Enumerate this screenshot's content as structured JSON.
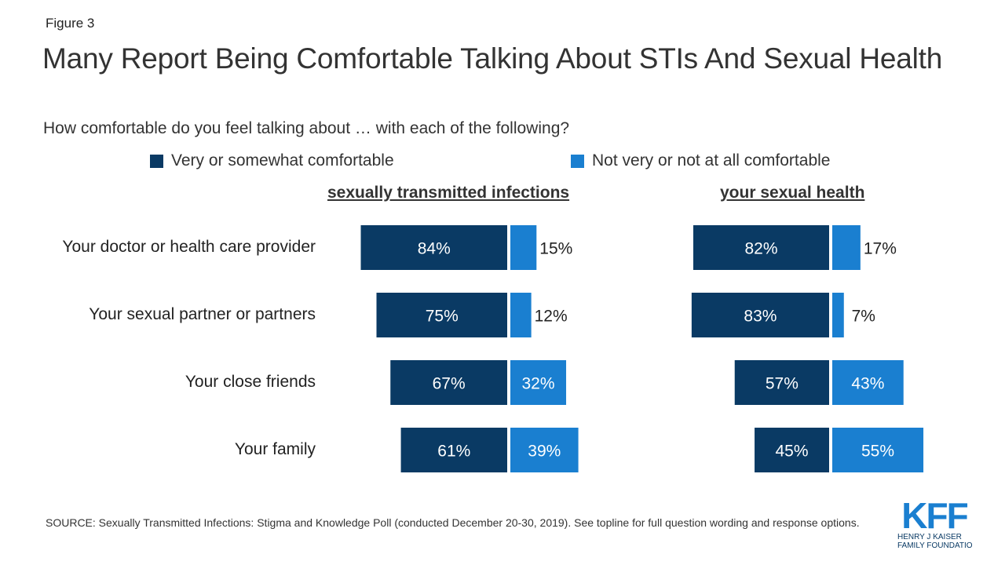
{
  "figure_label": "Figure 3",
  "title": "Many Report Being Comfortable Talking About STIs And Sexual Health",
  "subtitle": "How comfortable do you feel talking about … with each of the following?",
  "colors": {
    "comfortable": "#0a3a64",
    "not_comfortable": "#1a7fd0",
    "text": "#333333"
  },
  "chart_data": {
    "type": "bar",
    "orientation": "horizontal-diverging",
    "categories": [
      "Your doctor or health care provider",
      "Your sexual partner or partners",
      "Your close friends",
      "Your family"
    ],
    "legend": {
      "placement": "top",
      "entries": [
        "Very or somewhat comfortable",
        "Not very or not at all comfortable"
      ]
    },
    "panels": [
      {
        "title": "sexually transmitted infections",
        "series": [
          {
            "name": "Very or somewhat comfortable",
            "values": [
              84,
              75,
              67,
              61
            ]
          },
          {
            "name": "Not very or not at all comfortable",
            "values": [
              15,
              12,
              32,
              39
            ]
          }
        ]
      },
      {
        "title": "your sexual health",
        "series": [
          {
            "name": "Very or somewhat comfortable",
            "values": [
              82,
              83,
              57,
              45
            ]
          },
          {
            "name": "Not very or not at all comfortable",
            "values": [
              17,
              7,
              43,
              55
            ]
          }
        ]
      }
    ],
    "value_suffix": "%",
    "grid": false
  },
  "source": "SOURCE: Sexually Transmitted Infections: Stigma and Knowledge Poll (conducted December 20-30, 2019). See topline for full question wording and response options.",
  "logo": {
    "mark": "KFF",
    "line1": "HENRY J KAISER",
    "line2": "FAMILY FOUNDATION"
  }
}
